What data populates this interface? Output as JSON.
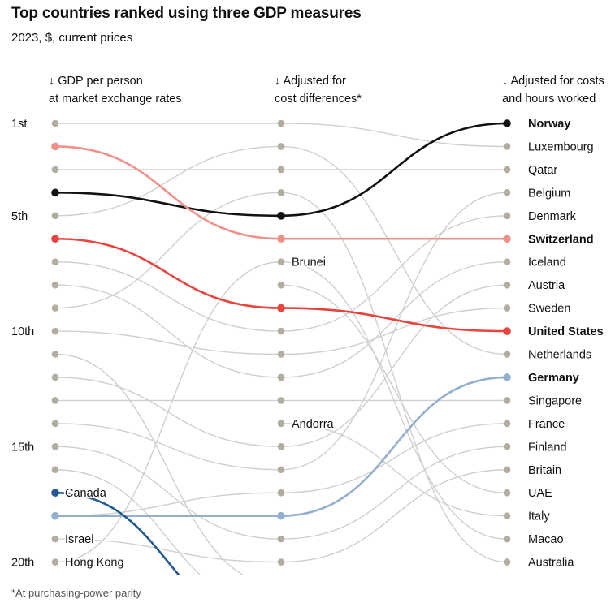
{
  "title": "Top countries ranked using three GDP measures",
  "subtitle": "2023, $, current prices",
  "footnote": "*At purchasing-power parity",
  "chart_data": {
    "type": "slope",
    "columns": [
      {
        "arrow": "↓",
        "lines": [
          "GDP per person",
          "at market exchange rates"
        ]
      },
      {
        "arrow": "↓",
        "lines": [
          "Adjusted for",
          "cost differences*"
        ]
      },
      {
        "arrow": "↓",
        "lines": [
          "Adjusted for costs",
          "and hours worked"
        ]
      }
    ],
    "rank_labels": [
      {
        "rank": 1,
        "label": "1st"
      },
      {
        "rank": 5,
        "label": "5th"
      },
      {
        "rank": 10,
        "label": "10th"
      },
      {
        "rank": 15,
        "label": "15th"
      },
      {
        "rank": 20,
        "label": "20th"
      }
    ],
    "visible_ranks": 20,
    "left_labels": [
      {
        "rank": 17,
        "name": "Canada"
      },
      {
        "rank": 19,
        "name": "Israel"
      },
      {
        "rank": 20,
        "name": "Hong Kong"
      }
    ],
    "middle_labels": [
      {
        "rank": 7,
        "name": "Brunei"
      },
      {
        "rank": 14,
        "name": "Andorra"
      }
    ],
    "right_labels": [
      {
        "rank": 1,
        "name": "Norway",
        "bold": true
      },
      {
        "rank": 2,
        "name": "Luxembourg"
      },
      {
        "rank": 3,
        "name": "Qatar"
      },
      {
        "rank": 4,
        "name": "Belgium"
      },
      {
        "rank": 5,
        "name": "Denmark"
      },
      {
        "rank": 6,
        "name": "Switzerland",
        "bold": true
      },
      {
        "rank": 7,
        "name": "Iceland"
      },
      {
        "rank": 8,
        "name": "Austria"
      },
      {
        "rank": 9,
        "name": "Sweden"
      },
      {
        "rank": 10,
        "name": "United States",
        "bold": true
      },
      {
        "rank": 11,
        "name": "Netherlands"
      },
      {
        "rank": 12,
        "name": "Germany",
        "bold": true
      },
      {
        "rank": 13,
        "name": "Singapore"
      },
      {
        "rank": 14,
        "name": "France"
      },
      {
        "rank": 15,
        "name": "Finland"
      },
      {
        "rank": 16,
        "name": "Britain"
      },
      {
        "rank": 17,
        "name": "UAE"
      },
      {
        "rank": 18,
        "name": "Italy"
      },
      {
        "rank": 19,
        "name": "Macao"
      },
      {
        "rank": 20,
        "name": "Australia"
      }
    ],
    "highlighted": [
      {
        "name": "Norway",
        "color": "#111111",
        "ranks": [
          4,
          5,
          1
        ]
      },
      {
        "name": "Switzerland",
        "color": "#f0908a",
        "ranks": [
          2,
          6,
          6
        ]
      },
      {
        "name": "United States",
        "color": "#e8433c",
        "ranks": [
          6,
          9,
          10
        ]
      },
      {
        "name": "Germany",
        "color": "#93b0d0",
        "ranks": [
          18,
          18,
          12
        ]
      },
      {
        "name": "Canada",
        "color": "#245a8f",
        "ranks": [
          17,
          23,
          null
        ]
      }
    ],
    "background_lines": [
      {
        "ranks": [
          1,
          1,
          2
        ]
      },
      {
        "ranks": [
          3,
          3,
          3
        ]
      },
      {
        "ranks": [
          5,
          2,
          11
        ]
      },
      {
        "ranks": [
          7,
          10,
          5
        ]
      },
      {
        "ranks": [
          8,
          12,
          7
        ]
      },
      {
        "ranks": [
          9,
          4,
          20
        ]
      },
      {
        "ranks": [
          10,
          11,
          9
        ]
      },
      {
        "ranks": [
          11,
          21,
          null
        ]
      },
      {
        "ranks": [
          12,
          15,
          8
        ]
      },
      {
        "ranks": [
          13,
          13,
          13
        ]
      },
      {
        "ranks": [
          14,
          16,
          4
        ]
      },
      {
        "ranks": [
          15,
          19,
          15
        ]
      },
      {
        "ranks": [
          16,
          22,
          null
        ]
      },
      {
        "ranks": [
          18,
          17,
          14
        ]
      },
      {
        "ranks": [
          19,
          20,
          16
        ]
      },
      {
        "ranks": [
          20,
          7,
          19
        ]
      },
      {
        "ranks": [
          null,
          8,
          17
        ]
      },
      {
        "ranks": [
          null,
          14,
          18
        ]
      }
    ],
    "colors": {
      "default_line": "#cfcfcf",
      "default_dot": "#b2ad9e"
    }
  }
}
